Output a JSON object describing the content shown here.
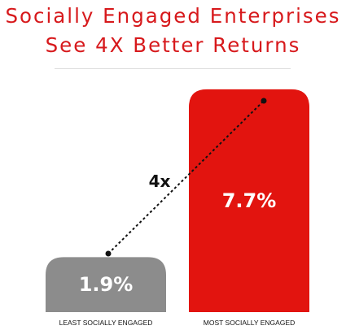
{
  "title": {
    "line1": "Socially Engaged Enterprises",
    "line2": "See 4X Better Returns"
  },
  "colors": {
    "accent": "#d7191c",
    "bar_least": "#8c8c8c",
    "bar_most": "#e2140f"
  },
  "chart_data": {
    "type": "bar",
    "categories": [
      "LEAST SOCIALLY ENGAGED",
      "MOST SOCIALLY ENGAGED"
    ],
    "values": [
      1.9,
      7.7
    ],
    "data_labels": [
      "1.9%",
      "7.7%"
    ],
    "annotation": "4x",
    "ylim": [
      0,
      9
    ],
    "grid": false
  }
}
